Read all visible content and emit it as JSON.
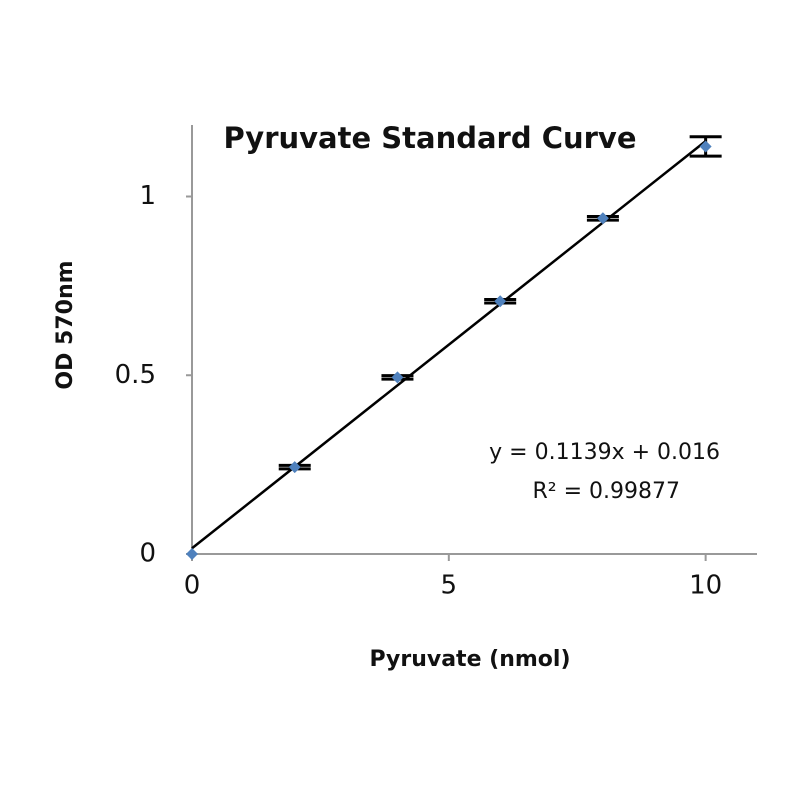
{
  "chart_data": {
    "type": "scatter",
    "title": "Pyruvate Standard Curve",
    "x_label": "Pyruvate (nmol)",
    "y_label": "OD 570nm",
    "x": [
      0,
      2,
      4,
      6,
      8,
      10
    ],
    "series": [
      {
        "name": "Pyruvate",
        "color": "#4f81bd",
        "values": [
          0,
          0.243,
          0.494,
          0.707,
          0.939,
          1.14
        ],
        "errors": [
          0,
          0.005,
          0.005,
          0.005,
          0.005,
          0.027
        ]
      }
    ],
    "trendline": {
      "slope": 0.1139,
      "intercept": 0.016,
      "color": "#000000",
      "equation": "y = 0.1139x + 0.016",
      "r_squared": "R² = 0.99877"
    },
    "xlim": [
      0,
      11
    ],
    "ylim": [
      0,
      1.2
    ],
    "xticks": [
      0,
      5,
      10
    ],
    "yticks": [
      0,
      0.5,
      1
    ],
    "grid": false
  }
}
